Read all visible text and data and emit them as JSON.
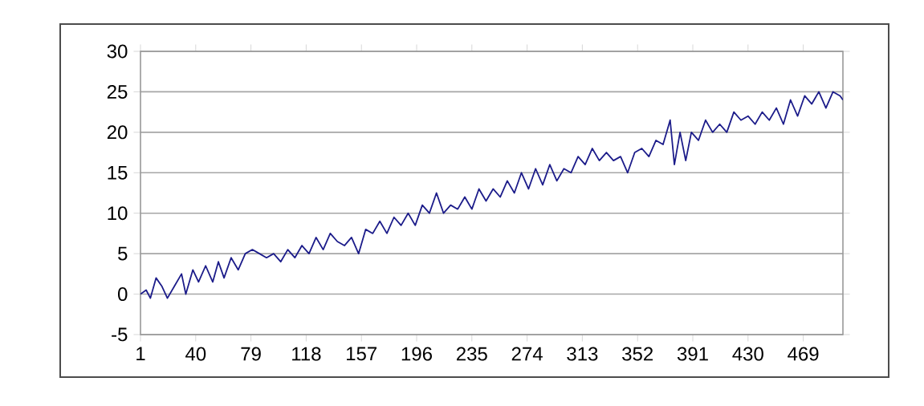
{
  "chart_data": {
    "type": "line",
    "color": "#1c1c8a",
    "grid": "y",
    "marker": "none",
    "line_style": "solid",
    "x": [
      1,
      5,
      8,
      12,
      16,
      20,
      25,
      30,
      33,
      38,
      42,
      47,
      52,
      56,
      60,
      65,
      70,
      75,
      80,
      85,
      90,
      95,
      100,
      105,
      110,
      115,
      120,
      125,
      130,
      135,
      140,
      145,
      150,
      155,
      160,
      165,
      170,
      175,
      180,
      185,
      190,
      195,
      200,
      205,
      210,
      215,
      220,
      225,
      230,
      235,
      240,
      245,
      250,
      255,
      260,
      265,
      270,
      275,
      280,
      285,
      290,
      295,
      300,
      305,
      310,
      315,
      320,
      325,
      330,
      335,
      340,
      345,
      350,
      355,
      360,
      365,
      370,
      375,
      378,
      382,
      386,
      390,
      395,
      400,
      405,
      410,
      415,
      420,
      425,
      430,
      435,
      440,
      445,
      450,
      455,
      460,
      465,
      470,
      475,
      480,
      485,
      490,
      495,
      497
    ],
    "values": [
      0,
      0.5,
      -0.5,
      2,
      1,
      -0.5,
      1,
      2.5,
      0,
      3,
      1.5,
      3.5,
      1.5,
      4,
      2,
      4.5,
      3,
      5,
      5.5,
      5,
      4.5,
      5,
      4,
      5.5,
      4.5,
      6,
      5,
      7,
      5.5,
      7.5,
      6.5,
      6,
      7,
      5,
      8,
      7.5,
      9,
      7.5,
      9.5,
      8.5,
      10,
      8.5,
      11,
      10,
      12.5,
      10,
      11,
      10.5,
      12,
      10.5,
      13,
      11.5,
      13,
      12,
      14,
      12.5,
      15,
      13,
      15.5,
      13.5,
      16,
      14,
      15.5,
      15,
      17,
      16,
      18,
      16.5,
      17.5,
      16.5,
      17,
      15,
      17.5,
      18,
      17,
      19,
      18.5,
      21.5,
      16,
      20,
      16.5,
      20,
      19,
      21.5,
      20,
      21,
      20,
      22.5,
      21.5,
      22,
      21,
      22.5,
      21.5,
      23,
      21,
      24,
      22,
      24.5,
      23.5,
      25,
      23,
      25,
      24.5,
      24
    ],
    "xlim": [
      1,
      497
    ],
    "ylim": [
      -5,
      30
    ],
    "xticks": [
      1,
      40,
      79,
      118,
      157,
      196,
      235,
      274,
      313,
      352,
      391,
      430,
      469
    ],
    "yticks": [
      -5,
      0,
      5,
      10,
      15,
      20,
      25,
      30
    ]
  }
}
